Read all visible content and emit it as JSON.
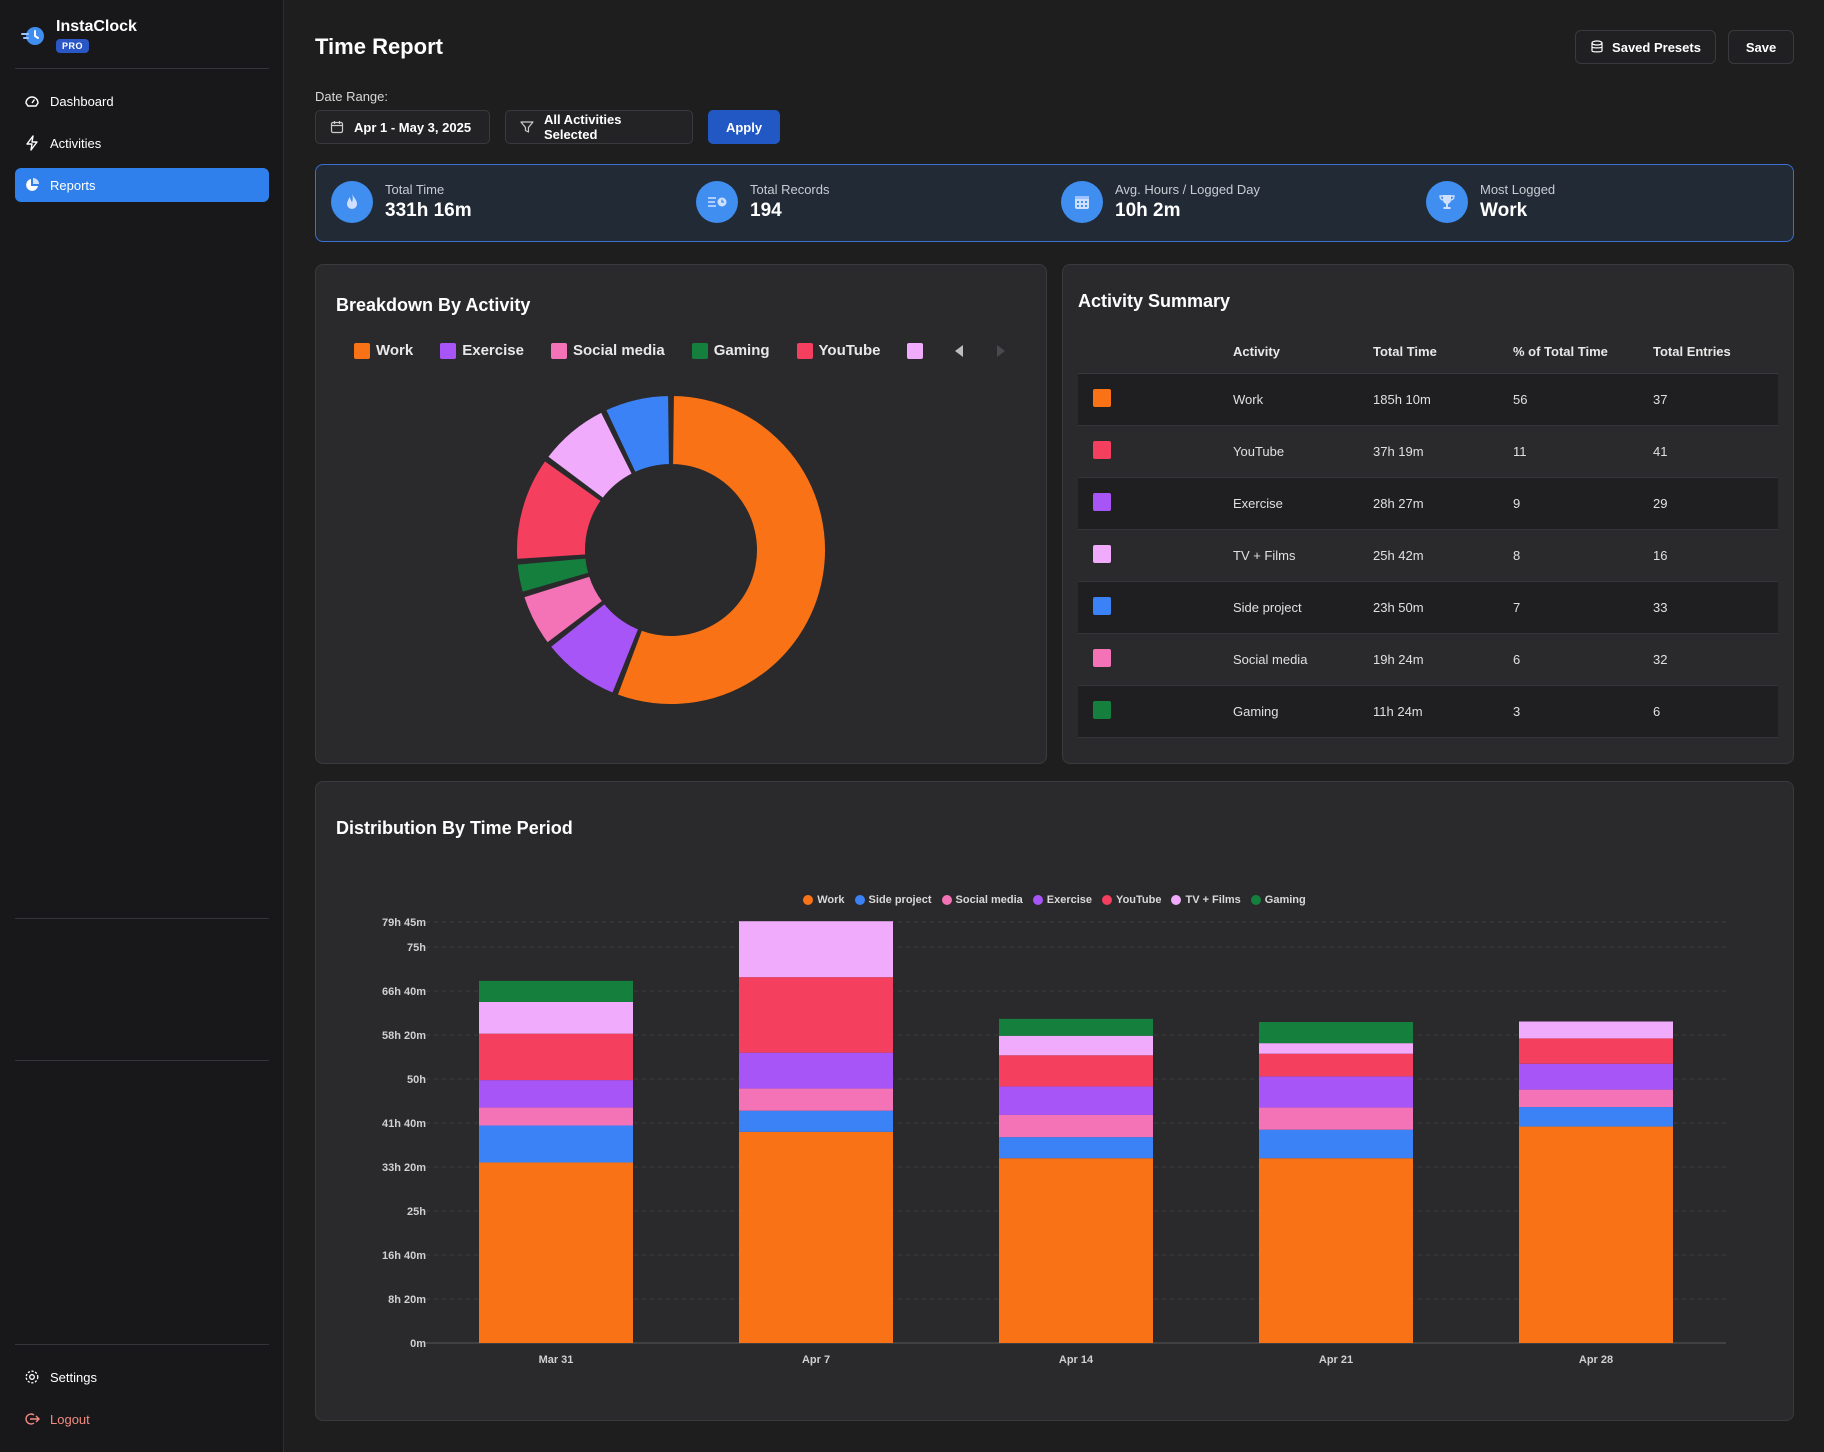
{
  "app": {
    "name": "InstaClock",
    "badge": "PRO"
  },
  "nav": {
    "dashboard": "Dashboard",
    "activities": "Activities",
    "reports": "Reports",
    "settings": "Settings",
    "logout": "Logout"
  },
  "header": {
    "title": "Time Report",
    "saved_presets": "Saved Presets",
    "save": "Save"
  },
  "filters": {
    "date_range_label": "Date Range:",
    "date_range": "Apr 1 - May 3, 2025",
    "activities": "All Activities Selected",
    "apply": "Apply"
  },
  "stats": {
    "total_time": {
      "label": "Total Time",
      "value": "331h 16m"
    },
    "total_records": {
      "label": "Total Records",
      "value": "194"
    },
    "avg_hours": {
      "label": "Avg. Hours / Logged Day",
      "value": "10h 2m"
    },
    "most_logged": {
      "label": "Most Logged",
      "value": "Work"
    }
  },
  "colors": {
    "work": "#f97316",
    "side_project": "#3b82f6",
    "social_media": "#f472b6",
    "exercise": "#a855f7",
    "youtube": "#f43f5e",
    "tv_films": "#f0abfc",
    "gaming": "#15803d"
  },
  "breakdown": {
    "title": "Breakdown By Activity",
    "legend": [
      {
        "name": "Work",
        "color": "#f97316"
      },
      {
        "name": "Exercise",
        "color": "#a855f7"
      },
      {
        "name": "Social media",
        "color": "#f472b6"
      },
      {
        "name": "Gaming",
        "color": "#15803d"
      },
      {
        "name": "YouTube",
        "color": "#f43f5e"
      }
    ]
  },
  "summary": {
    "title": "Activity Summary",
    "headers": {
      "activity": "Activity",
      "total_time": "Total Time",
      "percent": "% of Total Time",
      "entries": "Total Entries"
    },
    "rows": [
      {
        "activity": "Work",
        "total_time": "185h 10m",
        "percent": "56",
        "entries": "37",
        "color": "#f97316"
      },
      {
        "activity": "YouTube",
        "total_time": "37h 19m",
        "percent": "11",
        "entries": "41",
        "color": "#f43f5e"
      },
      {
        "activity": "Exercise",
        "total_time": "28h 27m",
        "percent": "9",
        "entries": "29",
        "color": "#a855f7"
      },
      {
        "activity": "TV + Films",
        "total_time": "25h 42m",
        "percent": "8",
        "entries": "16",
        "color": "#f0abfc"
      },
      {
        "activity": "Side project",
        "total_time": "23h 50m",
        "percent": "7",
        "entries": "33",
        "color": "#3b82f6"
      },
      {
        "activity": "Social media",
        "total_time": "19h 24m",
        "percent": "6",
        "entries": "32",
        "color": "#f472b6"
      },
      {
        "activity": "Gaming",
        "total_time": "11h 24m",
        "percent": "3",
        "entries": "6",
        "color": "#15803d"
      }
    ]
  },
  "distribution": {
    "title": "Distribution By Time Period"
  },
  "chart_data": [
    {
      "type": "pie",
      "variant": "donut",
      "title": "Breakdown By Activity",
      "slices": [
        {
          "name": "Work",
          "value": 185.17
        },
        {
          "name": "Exercise",
          "value": 28.45
        },
        {
          "name": "Social media",
          "value": 19.4
        },
        {
          "name": "Gaming",
          "value": 11.4
        },
        {
          "name": "YouTube",
          "value": 37.32
        },
        {
          "name": "TV + Films",
          "value": 25.7
        },
        {
          "name": "Side project",
          "value": 23.83
        }
      ],
      "slice_colors": [
        "#f97316",
        "#a855f7",
        "#f472b6",
        "#15803d",
        "#f43f5e",
        "#f0abfc",
        "#3b82f6"
      ]
    },
    {
      "type": "bar",
      "stacked": true,
      "title": "Distribution By Time Period",
      "categories": [
        "Mar 31",
        "Apr 7",
        "Apr 14",
        "Apr 21",
        "Apr 28"
      ],
      "ylim": [
        0,
        79.75
      ],
      "y_ticks": [
        {
          "value": 0,
          "label": "0m"
        },
        {
          "value": 8.333,
          "label": "8h 20m"
        },
        {
          "value": 16.667,
          "label": "16h 40m"
        },
        {
          "value": 25,
          "label": "25h"
        },
        {
          "value": 33.333,
          "label": "33h 20m"
        },
        {
          "value": 41.667,
          "label": "41h 40m"
        },
        {
          "value": 50,
          "label": "50h"
        },
        {
          "value": 58.333,
          "label": "58h 20m"
        },
        {
          "value": 66.667,
          "label": "66h 40m"
        },
        {
          "value": 75,
          "label": "75h"
        },
        {
          "value": 79.75,
          "label": "79h 45m"
        }
      ],
      "legend_position": "top-center",
      "series": [
        {
          "name": "Work",
          "color": "#f97316",
          "values": [
            34.2,
            40.0,
            35.0,
            35.0,
            41.0
          ]
        },
        {
          "name": "Side project",
          "color": "#3b82f6",
          "values": [
            7.0,
            4.0,
            4.0,
            5.4,
            3.7
          ]
        },
        {
          "name": "Social media",
          "color": "#f472b6",
          "values": [
            3.4,
            4.2,
            4.2,
            4.2,
            3.3
          ]
        },
        {
          "name": "Exercise",
          "color": "#a855f7",
          "values": [
            5.2,
            6.8,
            5.4,
            5.9,
            4.9
          ]
        },
        {
          "name": "YouTube",
          "color": "#f43f5e",
          "values": [
            8.8,
            14.3,
            5.9,
            4.3,
            4.8
          ]
        },
        {
          "name": "TV + Films",
          "color": "#f0abfc",
          "values": [
            6.0,
            10.6,
            3.7,
            2.0,
            3.2
          ]
        },
        {
          "name": "Gaming",
          "color": "#15803d",
          "values": [
            4.0,
            0,
            3.2,
            4.0,
            0
          ]
        }
      ]
    }
  ]
}
